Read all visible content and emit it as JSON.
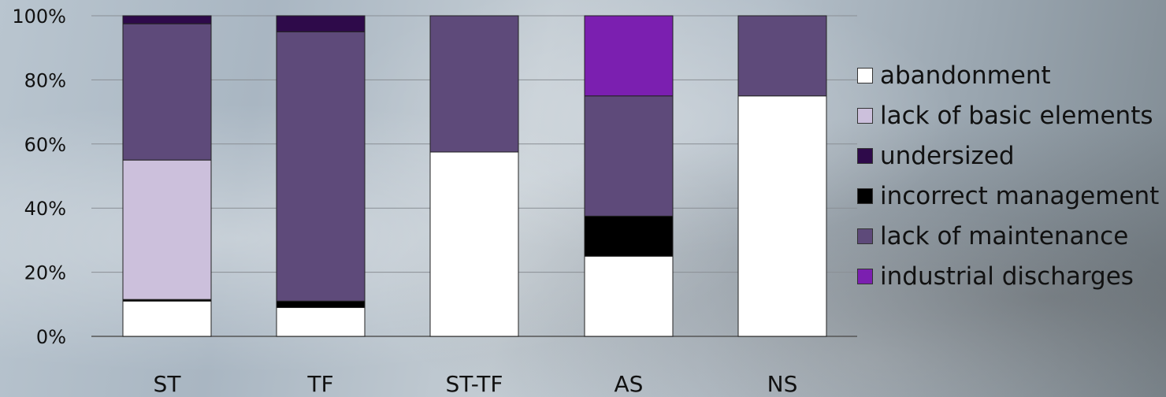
{
  "chart_data": {
    "type": "bar",
    "stacked": true,
    "categories": [
      "ST",
      "TF",
      "ST-TF",
      "AS",
      "NS"
    ],
    "ylim": [
      0,
      100
    ],
    "y_ticks": [
      "0%",
      "20%",
      "40%",
      "60%",
      "80%",
      "100%"
    ],
    "grid": true,
    "legend_position": "right",
    "series": [
      {
        "name": "abandonment",
        "color": "#ffffff",
        "values": [
          11,
          9,
          57.5,
          25,
          75
        ]
      },
      {
        "name": "lack of basic elements",
        "color": "#ccc0dc",
        "values": [
          43.5,
          0,
          0,
          0,
          0
        ]
      },
      {
        "name": "undersized",
        "color": "#2e0a4a",
        "values": [
          2.5,
          5,
          0,
          0,
          0
        ]
      },
      {
        "name": "incorrect management",
        "color": "#000000",
        "values": [
          0.5,
          2,
          0,
          12.5,
          0
        ]
      },
      {
        "name": "lack of maintenance",
        "color": "#5e4a7a",
        "values": [
          42.5,
          84,
          42.5,
          37.5,
          25
        ]
      },
      {
        "name": "industrial discharges",
        "color": "#7b1fb0",
        "values": [
          0,
          0,
          0,
          25,
          0
        ]
      }
    ],
    "stack_order": [
      0,
      3,
      1,
      4,
      2,
      5
    ]
  }
}
